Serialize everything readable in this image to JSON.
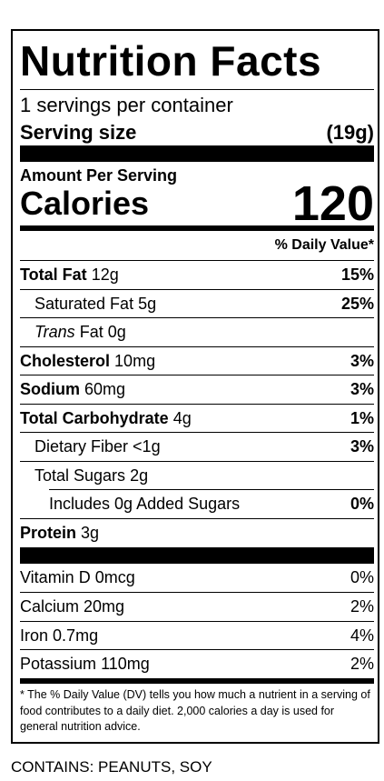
{
  "label": {
    "title": "Nutrition Facts",
    "servings": "1 servings per container",
    "serving_size_label": "Serving size",
    "serving_size": "(19g)",
    "amount_per_serving": "Amount Per Serving",
    "calories_label": "Calories",
    "calories": 120,
    "daily_value_header": "% Daily Value*",
    "nutrients": [
      {
        "name": "Total Fat",
        "amount": "12g",
        "dv": "15%"
      },
      {
        "name": "Saturated Fat",
        "amount": "5g",
        "dv": "25%"
      },
      {
        "name_italic": "Trans",
        "name": "Fat",
        "amount": "0g"
      },
      {
        "name": "Cholesterol",
        "amount": "10mg",
        "dv": "3%"
      },
      {
        "name": "Sodium",
        "amount": "60mg",
        "dv": "3%"
      },
      {
        "name": "Total Carbohydrate",
        "amount": "4g",
        "dv": "1%"
      },
      {
        "name": "Dietary Fiber",
        "amount": "<1g",
        "dv": "3%"
      },
      {
        "name": "Total Sugars",
        "amount": "2g"
      },
      {
        "name": "Includes 0g Added Sugars",
        "dv": "0%"
      },
      {
        "name": "Protein",
        "amount": "3g"
      }
    ],
    "vitamins": [
      {
        "name": "Vitamin D",
        "amount": "0mcg",
        "dv": "0%"
      },
      {
        "name": "Calcium",
        "amount": "20mg",
        "dv": "2%"
      },
      {
        "name": "Iron",
        "amount": "0.7mg",
        "dv": "4%"
      },
      {
        "name": "Potassium",
        "amount": "110mg",
        "dv": "2%"
      }
    ],
    "footnote": "* The % Daily Value (DV) tells you how much a nutrient in a serving of food contributes to a daily diet. 2,000 calories a day is used for general nutrition advice.",
    "allergens": "CONTAINS: PEANUTS, SOY"
  }
}
